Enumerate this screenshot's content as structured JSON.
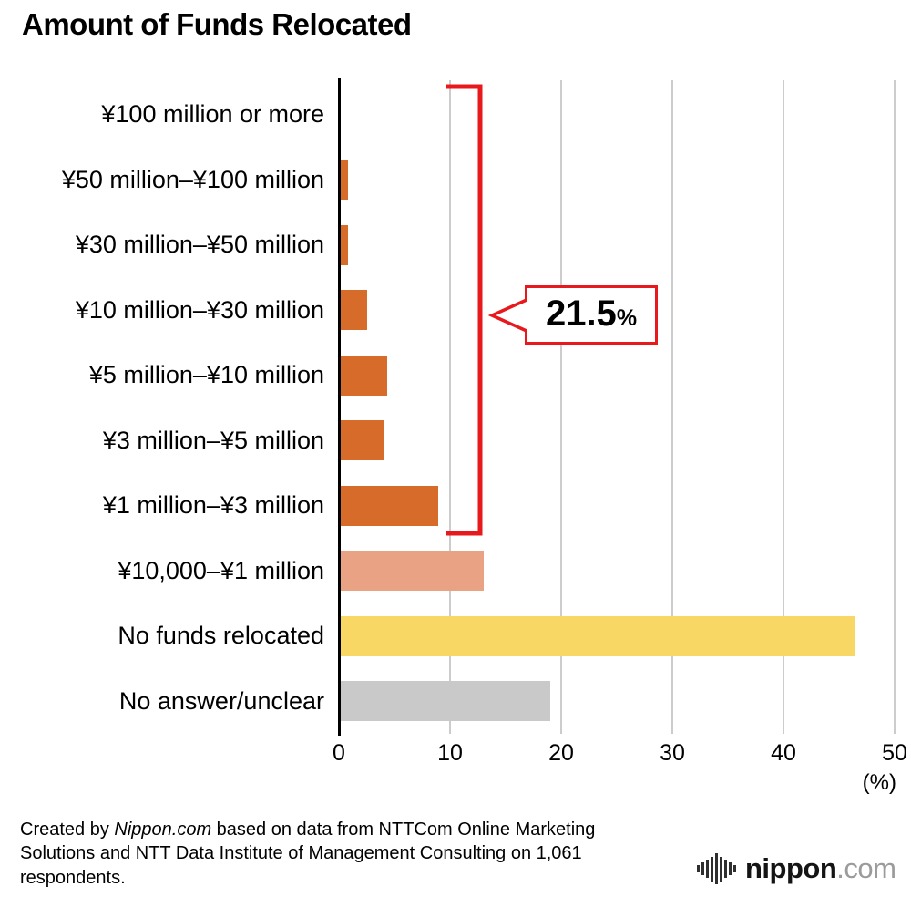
{
  "title": "Amount of Funds Relocated",
  "chart_data": {
    "type": "bar",
    "orientation": "horizontal",
    "title": "Amount of Funds Relocated",
    "categories": [
      "¥100 million or more",
      "¥50 million–¥100 million",
      "¥30 million–¥50 million",
      "¥10 million–¥30 million",
      "¥5 million–¥10 million",
      "¥3 million–¥5 million",
      "¥1 million–¥3 million",
      "¥10,000–¥1 million",
      "No funds relocated",
      "No answer/unclear"
    ],
    "values": [
      0.2,
      0.8,
      0.8,
      2.5,
      4.3,
      4.0,
      8.9,
      13.0,
      46.4,
      19.0
    ],
    "bar_colors": [
      "#d76b2a",
      "#d76b2a",
      "#d76b2a",
      "#d76b2a",
      "#d76b2a",
      "#d76b2a",
      "#d76b2a",
      "#e9a284",
      "#f8d765",
      "#c9c9c9"
    ],
    "xlim": [
      0,
      50
    ],
    "xticks": [
      0,
      10,
      20,
      30,
      40,
      50
    ],
    "unit_label": "(%)",
    "grid": true,
    "legend": false,
    "annotation": {
      "value": "21.5",
      "unit": "%",
      "spans_categories": [
        "¥100 million or more",
        "¥1 million–¥3 million"
      ],
      "color": "#e8191c"
    }
  },
  "footer": {
    "credit_prefix": "Created by ",
    "credit_source": "Nippon.com",
    "credit_suffix": " based on data from NTTCom Online Marketing Solutions and NTT Data Institute of Management Consulting on 1,061 respondents."
  },
  "logo": {
    "brand": "nippon",
    "tld": ".com"
  }
}
